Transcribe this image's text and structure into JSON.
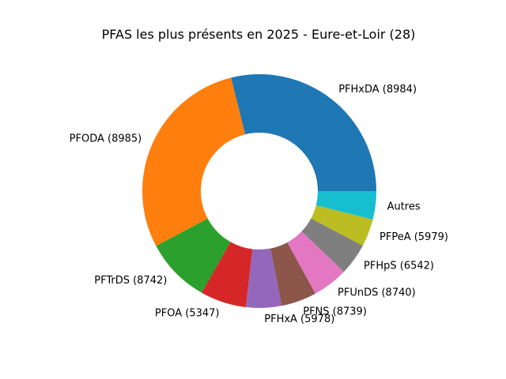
{
  "chart_data": {
    "type": "pie",
    "donut": true,
    "title": "PFAS les plus présents en 2025 - Eure-et-Loir (28)",
    "start_angle_deg": 0,
    "direction": "counterclockwise",
    "slices": [
      {
        "label": "PFHxDA (8984)",
        "value": 29.5,
        "color": "#1f77b4"
      },
      {
        "label": "PFODA (8985)",
        "value": 29.5,
        "color": "#ff7f0e"
      },
      {
        "label": "PFTrDS (8742)",
        "value": 9.2,
        "color": "#2ca02c"
      },
      {
        "label": "PFOA (5347)",
        "value": 6.5,
        "color": "#d62728"
      },
      {
        "label": "PFHxA (5978)",
        "value": 5.0,
        "color": "#9467bd"
      },
      {
        "label": "PFNS (8739)",
        "value": 5.0,
        "color": "#8c564b"
      },
      {
        "label": "PFUnDS (8740)",
        "value": 5.0,
        "color": "#e377c2"
      },
      {
        "label": "PFHpS (6542)",
        "value": 4.5,
        "color": "#7f7f7f"
      },
      {
        "label": "PFPeA (5979)",
        "value": 3.9,
        "color": "#bcbd22"
      },
      {
        "label": "Autres",
        "value": 4.0,
        "color": "#17becf"
      }
    ]
  }
}
